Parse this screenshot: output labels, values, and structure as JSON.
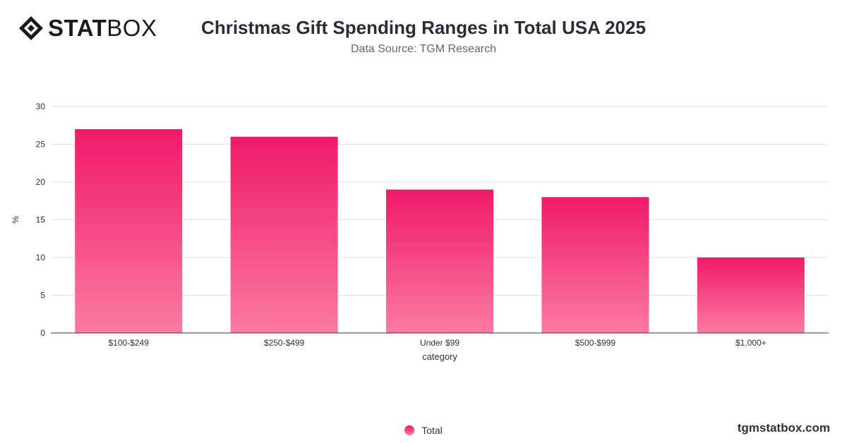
{
  "header": {
    "logo_text_strong": "STAT",
    "logo_text_light": "BOX",
    "title": "Christmas Gift Spending Ranges in Total USA 2025",
    "subtitle": "Data Source: TGM Research"
  },
  "footer": {
    "brand_url": "tgmstatbox.com"
  },
  "colors": {
    "bar_top": "#f01a68",
    "bar_bottom": "#fb7aa3",
    "grid": "#e2e2e2",
    "axis": "#333333"
  },
  "chart_data": {
    "type": "bar",
    "categories": [
      "$100-$249",
      "$250-$499",
      "Under $99",
      "$500-$999",
      "$1,000+"
    ],
    "series": [
      {
        "name": "Total",
        "values": [
          27,
          26,
          19,
          18,
          10
        ]
      }
    ],
    "xlabel": "category",
    "ylabel": "%",
    "ylim": [
      0,
      30
    ],
    "yticks": [
      0,
      5,
      10,
      15,
      20,
      25,
      30
    ],
    "grid": true,
    "legend_position": "bottom-center"
  }
}
